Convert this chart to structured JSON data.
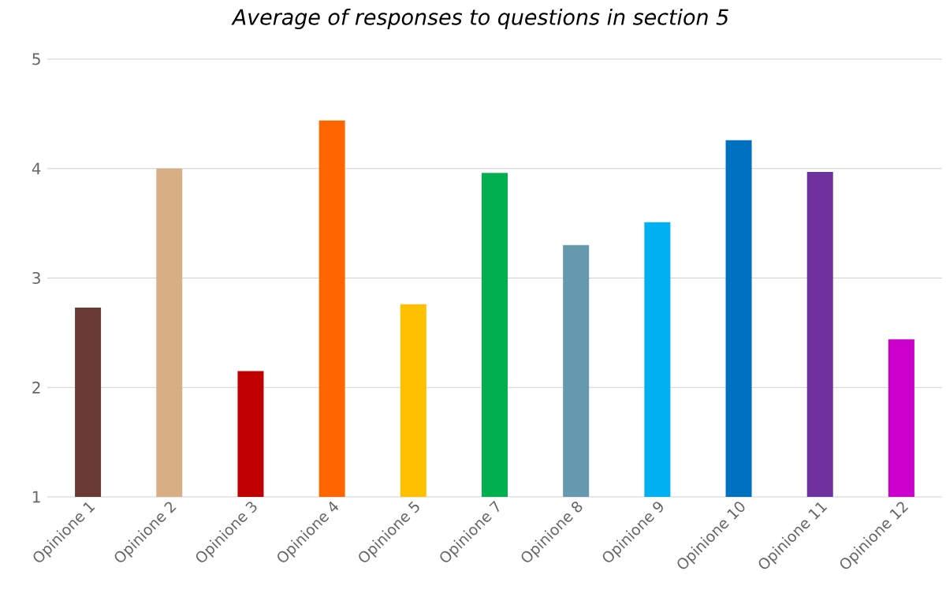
{
  "chart_data": {
    "type": "bar",
    "title": "Average of responses to questions in section 5",
    "categories": [
      "Opinione 1",
      "Opinione 2",
      "Opinione 3",
      "Opinione 4",
      "Opinione 5",
      "Opinione 7",
      "Opinione 8",
      "Opinione 9",
      "Opinione 10",
      "Opinione 11",
      "Opinione 12"
    ],
    "values": [
      2.73,
      4.0,
      2.15,
      4.44,
      2.76,
      3.96,
      3.3,
      3.51,
      4.26,
      3.97,
      2.44
    ],
    "colors": [
      "#693a33",
      "#d8ae85",
      "#c00000",
      "#ff6600",
      "#ffc000",
      "#00b050",
      "#6699ae",
      "#00b0f0",
      "#0070c0",
      "#7030a0",
      "#cc00cc"
    ],
    "ylim": [
      1,
      5
    ],
    "yticks": [
      1,
      2,
      3,
      4,
      5
    ],
    "grid": "y"
  }
}
